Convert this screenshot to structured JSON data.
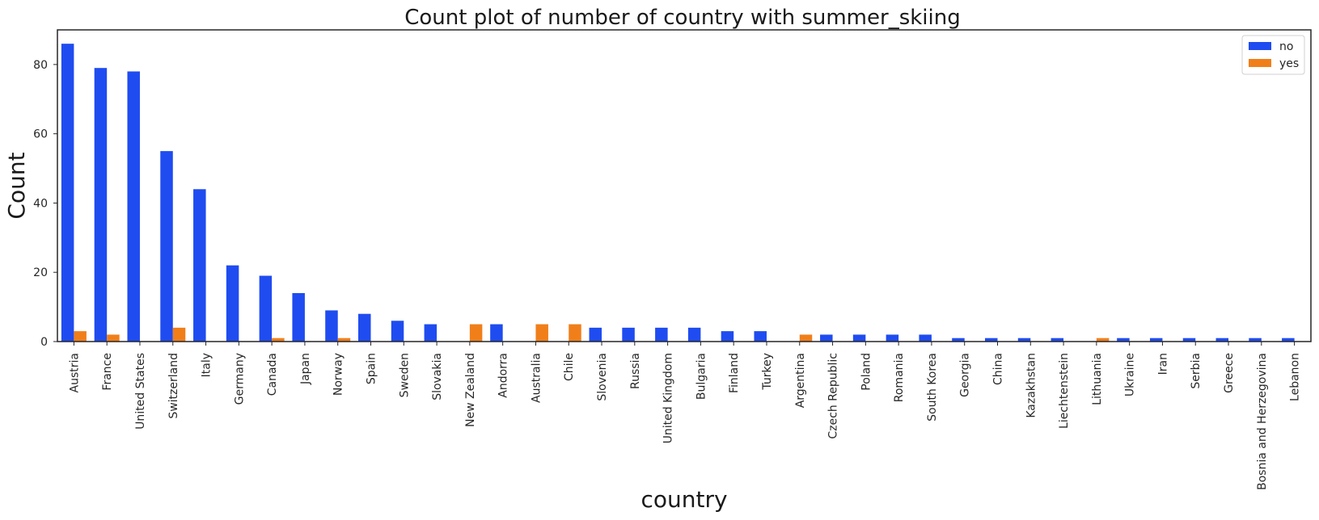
{
  "chart_data": {
    "type": "bar",
    "title": "Count plot of number of country with summer_skiing",
    "xlabel": "country",
    "ylabel": "Count",
    "ylim": [
      0,
      90
    ],
    "yticks": [
      0,
      20,
      40,
      60,
      80
    ],
    "grid": false,
    "legend_position": "top-right",
    "categories": [
      "Austria",
      "France",
      "United States",
      "Switzerland",
      "Italy",
      "Germany",
      "Canada",
      "Japan",
      "Norway",
      "Spain",
      "Sweden",
      "Slovakia",
      "New Zealand",
      "Andorra",
      "Australia",
      "Chile",
      "Slovenia",
      "Russia",
      "United Kingdom",
      "Bulgaria",
      "Finland",
      "Turkey",
      "Argentina",
      "Czech Republic",
      "Poland",
      "Romania",
      "South Korea",
      "Georgia",
      "China",
      "Kazakhstan",
      "Liechtenstein",
      "Lithuania",
      "Ukraine",
      "Iran",
      "Serbia",
      "Greece",
      "Bosnia and Herzegovina",
      "Lebanon"
    ],
    "series": [
      {
        "name": "no",
        "color": "#1f4cf0",
        "values": [
          86,
          79,
          78,
          55,
          44,
          22,
          19,
          14,
          9,
          8,
          6,
          5,
          0,
          5,
          0,
          0,
          4,
          4,
          4,
          4,
          3,
          3,
          0,
          2,
          2,
          2,
          2,
          1,
          1,
          1,
          1,
          0,
          1,
          1,
          1,
          1,
          1,
          1
        ]
      },
      {
        "name": "yes",
        "color": "#f07f1a",
        "values": [
          3,
          2,
          0,
          4,
          0,
          0,
          1,
          0,
          1,
          0,
          0,
          0,
          5,
          0,
          5,
          5,
          0,
          0,
          0,
          0,
          0,
          0,
          2,
          0,
          0,
          0,
          0,
          0,
          0,
          0,
          0,
          1,
          0,
          0,
          0,
          0,
          0,
          0
        ]
      }
    ]
  }
}
